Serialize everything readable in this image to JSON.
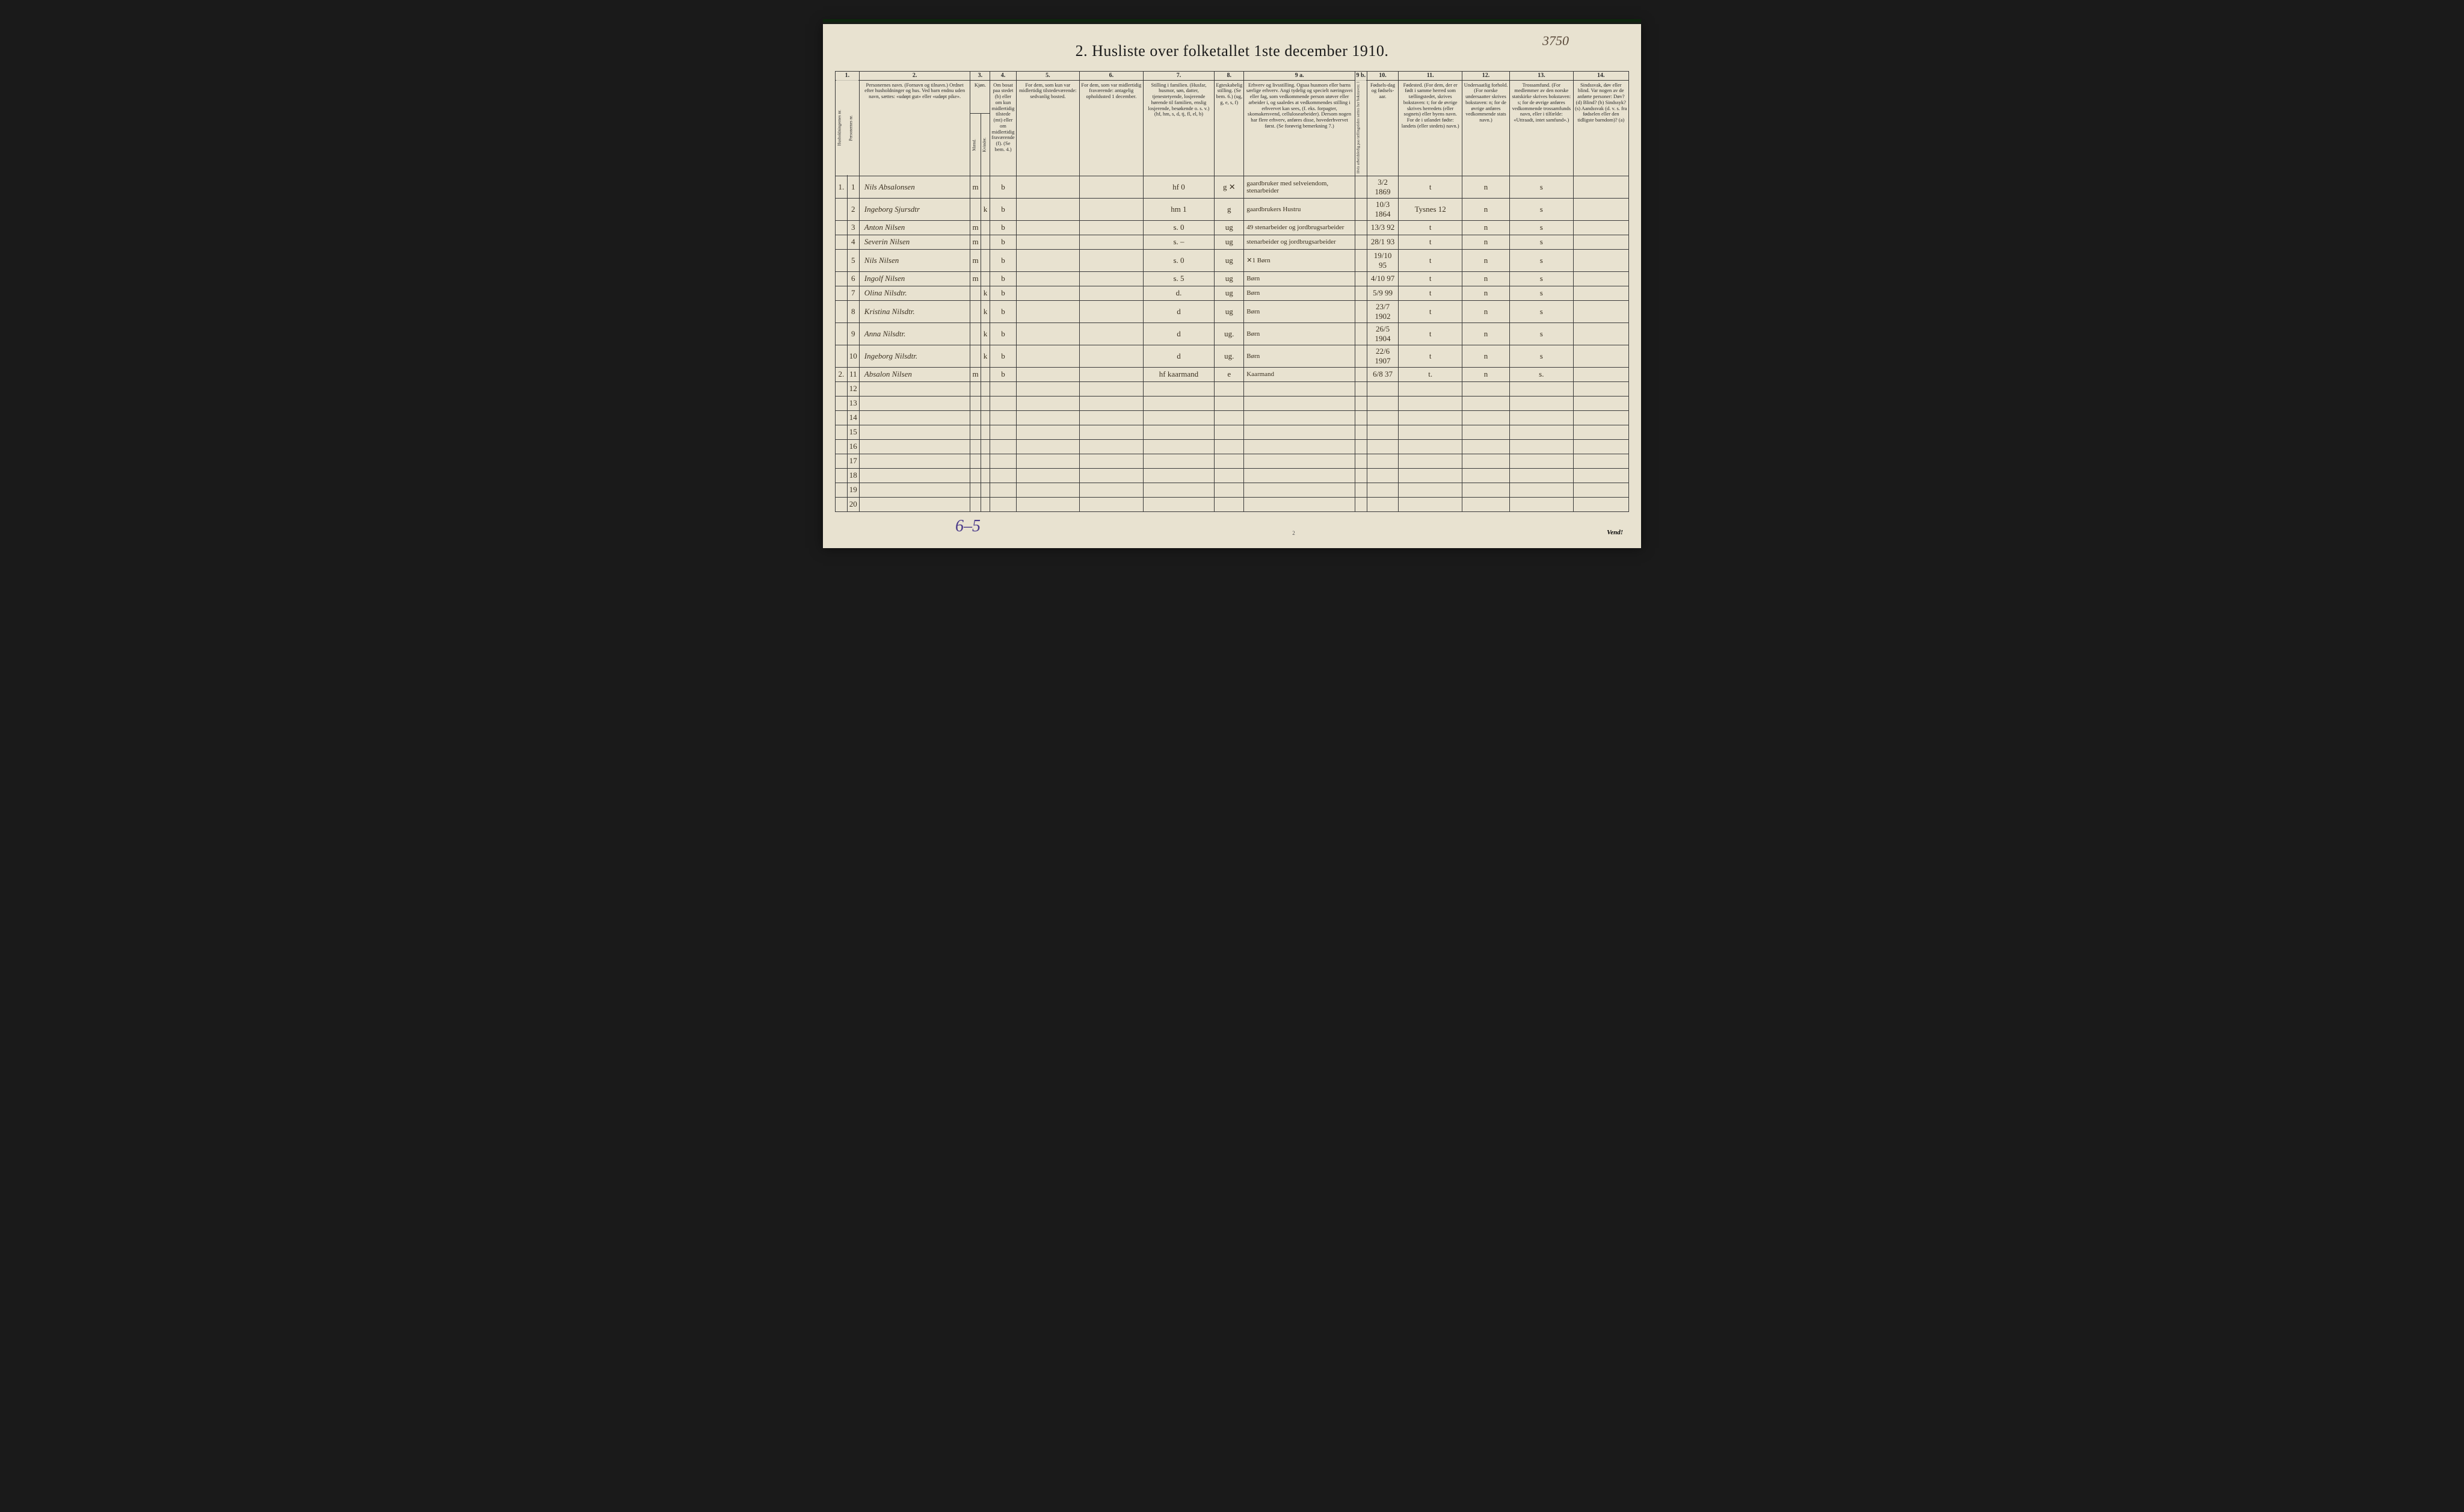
{
  "document": {
    "title": "2.  Husliste over folketallet 1ste december 1910.",
    "handwritten_page_ref": "3750",
    "footer_left": "6–5",
    "footer_center_pagenum": "2",
    "footer_right": "Vend!",
    "background_color": "#e8e2d0",
    "border_color": "#3a3a3a",
    "ink_color": "#3a3020"
  },
  "columns": {
    "nums": [
      "1.",
      "",
      "2.",
      "3.",
      "",
      "4.",
      "5.",
      "6.",
      "7.",
      "8.",
      "9 a.",
      "9 b.",
      "10.",
      "11.",
      "12.",
      "13.",
      "14."
    ],
    "headers": {
      "c1": "Husholdningernes nr.",
      "c1b": "Personernes nr.",
      "c2": "Personernes navn.\n(Fornavn og tilnavn.)\nOrdnet efter husholdninger og hus.\nVed barn endnu uden navn, sættes: «udøpt gut» eller «udøpt pike».",
      "c3": "Kjøn.",
      "c3m": "Mænd.",
      "c3k": "Kvinder.",
      "c4": "Om bosat paa stedet (b) eller om kun midlertidig tilstede (mt) eller om midlertidig fraværende (f). (Se bem. 4.)",
      "c5": "For dem, som kun var midlertidig tilstedeværende:\nsedvanlig bosted.",
      "c6": "For dem, som var midlertidig fraværende:\nantagelig opholdssted 1 december.",
      "c7": "Stilling i familien.\n(Husfar, husmor, søn, datter, tjenestetyende, losjerende hørende til familien, enslig losjerende, besøkende o. s. v.)\n(hf, hm, s, d, tj, fl, el, b)",
      "c8": "Egteskabelig stilling.\n(Se bem. 6.)\n(ug, g, e, s, f)",
      "c9a": "Erhverv og livsstilling.\nOgsaa husmors eller barns særlige erhverv. Angi tydelig og specielt næringsvei eller fag, som vedkommende person utøver eller arbeider i, og saaledes at vedkommendes stilling i erhvervet kan sees, (f. eks. forpagter, skomakersvend, cellulosearbeider). Dersom nogen har flere erhverv, anføres disse, hovederhvervet først.\n(Se forøvrig bemerkning 7.)",
      "c9b": "Hvis arbeidsledig paa tællingstiden sættes her bokstaven: l",
      "c10": "Fødsels-dag og fødsels-aar.",
      "c11": "Fødested.\n(For dem, der er født i samme herred som tællingstedet, skrives bokstaven: t; for de øvrige skrives herredets (eller sognets) eller byens navn. For de i utlandet fødte: landets (eller stedets) navn.)",
      "c12": "Undersaatlig forhold.\n(For norske undersaatter skrives bokstaven: n; for de øvrige anføres vedkommende stats navn.)",
      "c13": "Trossamfund.\n(For medlemmer av den norske statskirke skrives bokstaven: s; for de øvrige anføres vedkommende trossamfunds navn, eller i tilfælde: «Uttraadt, intet samfund».)",
      "c14": "Sindssvak, døv eller blind.\nVar nogen av de anførte personer:\nDøv? (d)\nBlind? (b)\nSindssyk? (s)\nAandssvak (d. v. s. fra fødselen eller den tidligste barndom)? (a)"
    }
  },
  "rows": [
    {
      "hh": "1.",
      "pn": "1",
      "name": "Nils Absalonsen",
      "sex_m": "m",
      "sex_k": "",
      "bosat": "b",
      "c5": "",
      "c6": "",
      "c7": "hf   0",
      "c8": "g ✕",
      "c9a": "gaardbruker med selveiendom, stenarbeider",
      "c9b": "",
      "c10": "3/2 1869",
      "c11": "t",
      "c12": "n",
      "c13": "s",
      "c14": ""
    },
    {
      "hh": "",
      "pn": "2",
      "name": "Ingeborg Sjursdtr",
      "sex_m": "",
      "sex_k": "k",
      "bosat": "b",
      "c5": "",
      "c6": "",
      "c7": "hm   1",
      "c8": "g",
      "c9a": "gaardbrukers Hustru",
      "c9b": "",
      "c10": "10/3 1864",
      "c11": "Tysnes 12",
      "c12": "n",
      "c13": "s",
      "c14": ""
    },
    {
      "hh": "",
      "pn": "3",
      "name": "Anton Nilsen",
      "sex_m": "m",
      "sex_k": "",
      "bosat": "b",
      "c5": "",
      "c6": "",
      "c7": "s.   0",
      "c8": "ug",
      "c9a": "49 stenarbeider og jordbrugsarbeider",
      "c9b": "",
      "c10": "13/3 92",
      "c11": "t",
      "c12": "n",
      "c13": "s",
      "c14": ""
    },
    {
      "hh": "",
      "pn": "4",
      "name": "Severin Nilsen",
      "sex_m": "m",
      "sex_k": "",
      "bosat": "b",
      "c5": "",
      "c6": "",
      "c7": "s.   –",
      "c8": "ug",
      "c9a": "stenarbeider og jordbrugsarbeider",
      "c9b": "",
      "c10": "28/1 93",
      "c11": "t",
      "c12": "n",
      "c13": "s",
      "c14": ""
    },
    {
      "hh": "",
      "pn": "5",
      "name": "Nils Nilsen",
      "sex_m": "m",
      "sex_k": "",
      "bosat": "b",
      "c5": "",
      "c6": "",
      "c7": "s.   0",
      "c8": "ug",
      "c9a": "✕1  Børn",
      "c9b": "",
      "c10": "19/10 95",
      "c11": "t",
      "c12": "n",
      "c13": "s",
      "c14": ""
    },
    {
      "hh": "",
      "pn": "6",
      "name": "Ingolf Nilsen",
      "sex_m": "m",
      "sex_k": "",
      "bosat": "b",
      "c5": "",
      "c6": "",
      "c7": "s.   5",
      "c8": "ug",
      "c9a": "Børn",
      "c9b": "",
      "c10": "4/10 97",
      "c11": "t",
      "c12": "n",
      "c13": "s",
      "c14": ""
    },
    {
      "hh": "",
      "pn": "7",
      "name": "Olina Nilsdtr.",
      "sex_m": "",
      "sex_k": "k",
      "bosat": "b",
      "c5": "",
      "c6": "",
      "c7": "d.",
      "c8": "ug",
      "c9a": "Børn",
      "c9b": "",
      "c10": "5/9 99",
      "c11": "t",
      "c12": "n",
      "c13": "s",
      "c14": ""
    },
    {
      "hh": "",
      "pn": "8",
      "name": "Kristina Nilsdtr.",
      "sex_m": "",
      "sex_k": "k",
      "bosat": "b",
      "c5": "",
      "c6": "",
      "c7": "d",
      "c8": "ug",
      "c9a": "Børn",
      "c9b": "",
      "c10": "23/7 1902",
      "c11": "t",
      "c12": "n",
      "c13": "s",
      "c14": ""
    },
    {
      "hh": "",
      "pn": "9",
      "name": "Anna Nilsdtr.",
      "sex_m": "",
      "sex_k": "k",
      "bosat": "b",
      "c5": "",
      "c6": "",
      "c7": "d",
      "c8": "ug.",
      "c9a": "Børn",
      "c9b": "",
      "c10": "26/5 1904",
      "c11": "t",
      "c12": "n",
      "c13": "s",
      "c14": ""
    },
    {
      "hh": "",
      "pn": "10",
      "name": "Ingeborg Nilsdtr.",
      "sex_m": "",
      "sex_k": "k",
      "bosat": "b",
      "c5": "",
      "c6": "",
      "c7": "d",
      "c8": "ug.",
      "c9a": "Børn",
      "c9b": "",
      "c10": "22/6 1907",
      "c11": "t",
      "c12": "n",
      "c13": "s",
      "c14": ""
    },
    {
      "hh": "2.",
      "pn": "11",
      "name": "Absalon Nilsen",
      "sex_m": "m",
      "sex_k": "",
      "bosat": "b",
      "c5": "",
      "c6": "",
      "c7": "hf kaarmand",
      "c8": "e",
      "c9a": "Kaarmand",
      "c9b": "",
      "c10": "6/8 37",
      "c11": "t.",
      "c12": "n",
      "c13": "s.",
      "c14": ""
    }
  ],
  "empty_row_numbers": [
    "12",
    "13",
    "14",
    "15",
    "16",
    "17",
    "18",
    "19",
    "20"
  ]
}
